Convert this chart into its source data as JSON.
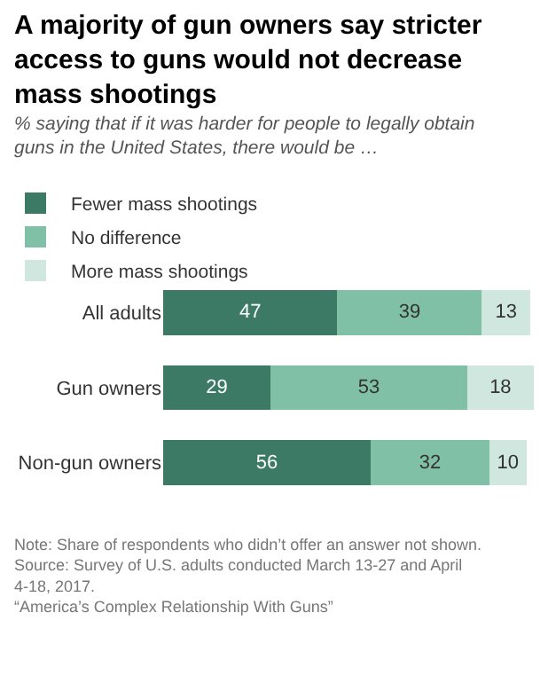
{
  "chart_data": {
    "type": "bar",
    "orientation": "horizontal",
    "stacked": true,
    "data_labels": true,
    "legend": "top left",
    "title": "A majority of gun owners say stricter access to guns would not decrease mass shootings",
    "subtitle": "% saying that if it was harder for people to legally obtain guns in the United States, there would be …",
    "categories": [
      "All adults",
      "Gun owners",
      "Non-gun owners"
    ],
    "series": [
      {
        "name": "Fewer mass shootings",
        "color": "#3c7a65",
        "values": [
          47,
          29,
          56
        ]
      },
      {
        "name": "No difference",
        "color": "#80c0a6",
        "values": [
          39,
          53,
          32
        ]
      },
      {
        "name": "More mass shootings",
        "color": "#cfe7df",
        "values": [
          13,
          18,
          10
        ]
      }
    ],
    "annotations": [
      "Note: Share of respondents who didn’t offer an answer not shown.",
      "Source: Survey of U.S. adults conducted March 13-27 and April 4-18, 2017.",
      "“America’s Complex Relationship With Guns”"
    ]
  }
}
